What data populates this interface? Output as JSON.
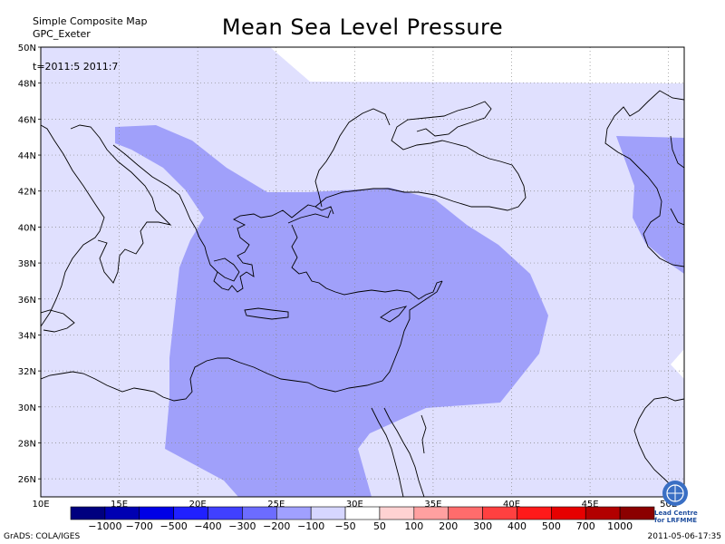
{
  "header": {
    "top_left_line1": "Simple Composite Map",
    "top_left_line2": "GPC_Exeter",
    "title": "Mean Sea Level Pressure",
    "time_label": "t=2011:5 2011:7"
  },
  "axes": {
    "lat_labels": [
      "50N",
      "48N",
      "46N",
      "44N",
      "42N",
      "40N",
      "38N",
      "36N",
      "34N",
      "32N",
      "30N",
      "28N",
      "26N"
    ],
    "lon_labels": [
      "10E",
      "15E",
      "20E",
      "25E",
      "30E",
      "35E",
      "40E",
      "45E",
      "50E"
    ]
  },
  "colorbar": {
    "colors": [
      "#00007f",
      "#0000b2",
      "#0000e6",
      "#2020ff",
      "#4040ff",
      "#6c6cff",
      "#a0a0ff",
      "#d6d6ff",
      "#ffffff",
      "#ffd2d2",
      "#ffa0a0",
      "#ff6c6c",
      "#ff4040",
      "#ff1a1a",
      "#e60000",
      "#b20000",
      "#8b0000"
    ],
    "labels": [
      "-1000",
      "-700",
      "-500",
      "-400",
      "-300",
      "-200",
      "-100",
      "-50",
      "50",
      "100",
      "200",
      "300",
      "400",
      "500",
      "700",
      "1000"
    ]
  },
  "shading": {
    "light_color": "#e0e0fe",
    "medium_color": "#a0a0fa"
  },
  "footer": {
    "left": "GrADS: COLA/IGES",
    "right": "2011-05-06-17:35",
    "logo_line1": "Lead Centre",
    "logo_line2": "for LRFMME"
  },
  "icons": [
    "un-emblem-icon"
  ]
}
